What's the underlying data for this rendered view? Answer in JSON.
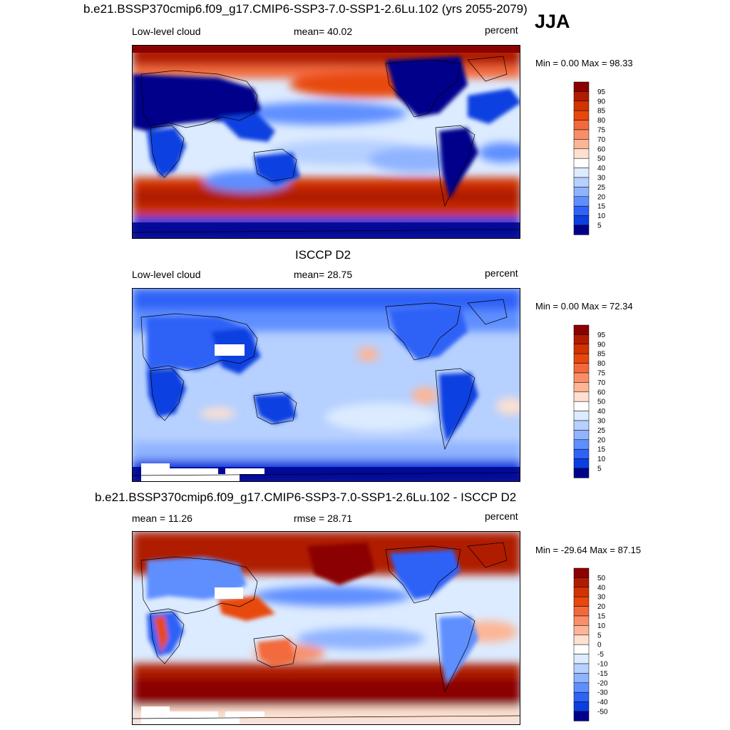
{
  "season": "JJA",
  "panels": [
    {
      "title": "b.e21.BSSP370cmip6.f09_g17.CMIP6-SSP3-7.0-SSP1-2.6Lu.102 (yrs 2055-2079)",
      "left_label": "Low-level cloud",
      "center_label": "mean=  40.02",
      "units": "percent",
      "minmax": "Min =   0.00 Max =  98.33",
      "colorbar_labels": [
        "95",
        "90",
        "85",
        "80",
        "75",
        "70",
        "60",
        "50",
        "40",
        "30",
        "25",
        "20",
        "15",
        "10",
        "5"
      ],
      "colorbar_colors": [
        "#8b0000",
        "#b01c00",
        "#d23300",
        "#e8480c",
        "#f26a3c",
        "#f98e68",
        "#fdb595",
        "#fde0d0",
        "#ffffff",
        "#dcebff",
        "#b6d0ff",
        "#8fb3ff",
        "#5f8fff",
        "#2f62f7",
        "#0b3fe0",
        "#00008b"
      ]
    },
    {
      "title": "ISCCP D2",
      "left_label": "Low-level cloud",
      "center_label": "mean=  28.75",
      "units": "percent",
      "minmax": "Min =   0.00 Max =  72.34",
      "colorbar_labels": [
        "95",
        "90",
        "85",
        "80",
        "75",
        "70",
        "60",
        "50",
        "40",
        "30",
        "25",
        "20",
        "15",
        "10",
        "5"
      ],
      "colorbar_colors": [
        "#8b0000",
        "#b01c00",
        "#d23300",
        "#e8480c",
        "#f26a3c",
        "#f98e68",
        "#fdb595",
        "#fde0d0",
        "#ffffff",
        "#dcebff",
        "#b6d0ff",
        "#8fb3ff",
        "#5f8fff",
        "#2f62f7",
        "#0b3fe0",
        "#00008b"
      ]
    },
    {
      "title": "b.e21.BSSP370cmip6.f09_g17.CMIP6-SSP3-7.0-SSP1-2.6Lu.102 - ISCCP D2",
      "left_label": "mean =  11.26",
      "center_label": "rmse =  28.71",
      "units": "percent",
      "minmax": "Min = -29.64 Max =  87.15",
      "colorbar_labels": [
        "50",
        "40",
        "30",
        "20",
        "15",
        "10",
        "5",
        "0",
        "-5",
        "-10",
        "-15",
        "-20",
        "-30",
        "-40",
        "-50"
      ],
      "colorbar_colors": [
        "#8b0000",
        "#b01c00",
        "#d23300",
        "#e8480c",
        "#f26a3c",
        "#f98e68",
        "#fdb595",
        "#fde0d0",
        "#ffffff",
        "#dcebff",
        "#b6d0ff",
        "#8fb3ff",
        "#5f8fff",
        "#2f62f7",
        "#0b3fe0",
        "#00008b"
      ]
    }
  ],
  "chart_data": [
    {
      "type": "heatmap",
      "title": "b.e21.BSSP370cmip6.f09_g17.CMIP6-SSP3-7.0-SSP1-2.6Lu.102 (yrs 2055-2079)",
      "variable": "Low-level cloud",
      "units": "percent",
      "season": "JJA",
      "mean": 40.02,
      "min": 0.0,
      "max": 98.33,
      "levels": [
        5,
        10,
        15,
        20,
        25,
        30,
        40,
        50,
        60,
        70,
        75,
        80,
        85,
        90,
        95
      ]
    },
    {
      "type": "heatmap",
      "title": "ISCCP D2",
      "variable": "Low-level cloud",
      "units": "percent",
      "season": "JJA",
      "mean": 28.75,
      "min": 0.0,
      "max": 72.34,
      "levels": [
        5,
        10,
        15,
        20,
        25,
        30,
        40,
        50,
        60,
        70,
        75,
        80,
        85,
        90,
        95
      ]
    },
    {
      "type": "heatmap",
      "title": "b.e21.BSSP370cmip6.f09_g17.CMIP6-SSP3-7.0-SSP1-2.6Lu.102 - ISCCP D2",
      "units": "percent",
      "season": "JJA",
      "mean": 11.26,
      "rmse": 28.71,
      "min": -29.64,
      "max": 87.15,
      "levels": [
        -50,
        -40,
        -30,
        -20,
        -15,
        -10,
        -5,
        0,
        5,
        10,
        15,
        20,
        30,
        40,
        50
      ]
    }
  ]
}
